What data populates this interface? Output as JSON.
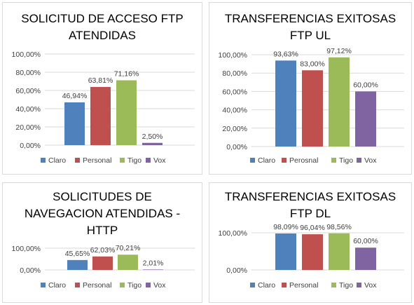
{
  "colors": {
    "Claro": "#4f81bd",
    "Personal": "#c0504d",
    "Perosnal": "#c0504d",
    "Tigo": "#9bbb59",
    "Vox": "#8064a2"
  },
  "chart_data": [
    {
      "type": "bar",
      "title_lines": [
        "SOLICITUD DE ACCESO FTP",
        "ATENDIDAS"
      ],
      "categories": [
        "Claro",
        "Personal",
        "Tigo",
        "Vox"
      ],
      "values": [
        46.94,
        63.81,
        71.16,
        2.5
      ],
      "data_labels": [
        "46,94%",
        "63,81%",
        "71,16%",
        "2,50%"
      ],
      "yticks": [
        "100,00%",
        "80,00%",
        "60,00%",
        "40,00%",
        "20,00%",
        "0,00%"
      ],
      "ylim": [
        0,
        100
      ],
      "legend": [
        "Claro",
        "Personal",
        "Tigo",
        "Vox"
      ],
      "legend_position": "bottom"
    },
    {
      "type": "bar",
      "title_lines": [
        "TRANSFERENCIAS EXITOSAS",
        "FTP UL"
      ],
      "categories": [
        "Claro",
        "Perosnal",
        "Tigo",
        "Vox"
      ],
      "values": [
        93.63,
        83.0,
        97.12,
        60.0
      ],
      "data_labels": [
        "93,63%",
        "83,00%",
        "97,12%",
        "60,00%"
      ],
      "yticks": [
        "100,00%",
        "80,00%",
        "60,00%",
        "40,00%",
        "20,00%",
        "0,00%"
      ],
      "ylim": [
        0,
        100
      ],
      "legend": [
        "Claro",
        "Perosnal",
        "Tigo",
        "Vox"
      ],
      "legend_position": "bottom"
    },
    {
      "type": "bar",
      "title_lines": [
        "SOLICITUDES DE",
        "NAVEGACION ATENDIDAS -",
        "HTTP"
      ],
      "categories": [
        "Claro",
        "Personal",
        "Tigo",
        "Vox"
      ],
      "values": [
        45.65,
        62.03,
        70.21,
        2.01
      ],
      "data_labels": [
        "45,65%",
        "62,03%",
        "70,21%",
        "2,01%"
      ],
      "yticks": [
        "100,00%",
        "0,00%"
      ],
      "ylim": [
        0,
        100
      ],
      "legend": [
        "Claro",
        "Personal",
        "Tigo",
        "Vox"
      ],
      "legend_position": "bottom"
    },
    {
      "type": "bar",
      "title_lines": [
        "TRANSFERENCIAS EXITOSAS",
        "FTP DL"
      ],
      "categories": [
        "Claro",
        "Personal",
        "Tigo",
        "Vox"
      ],
      "values": [
        98.09,
        96.04,
        98.56,
        60.0
      ],
      "data_labels": [
        "98,09%",
        "96,04%",
        "98,56%",
        "60,00%"
      ],
      "yticks": [
        "100,00%",
        "0,00%"
      ],
      "ylim": [
        0,
        100
      ],
      "legend": [
        "Claro",
        "Personal",
        "Tigo",
        "Vox"
      ],
      "legend_position": "bottom"
    }
  ]
}
